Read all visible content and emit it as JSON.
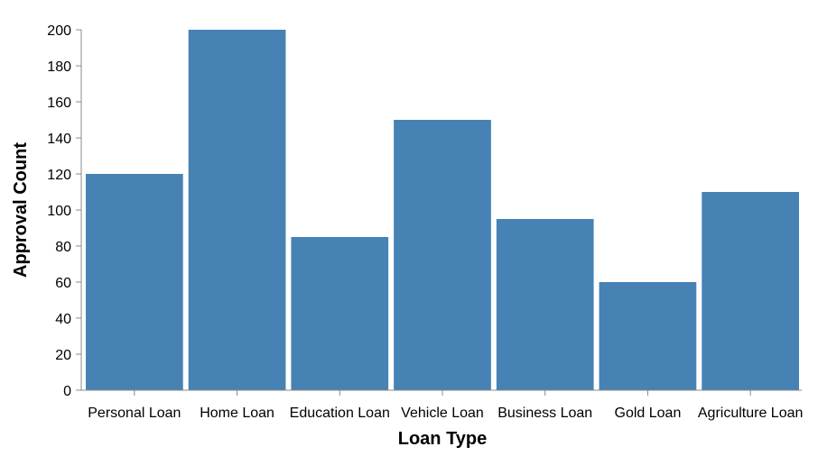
{
  "chart_data": {
    "type": "bar",
    "title": "",
    "xlabel": "Loan Type",
    "ylabel": "Approval Count",
    "categories": [
      "Personal Loan",
      "Home Loan",
      "Education Loan",
      "Vehicle Loan",
      "Business Loan",
      "Gold Loan",
      "Agriculture Loan"
    ],
    "values": [
      120,
      200,
      85,
      150,
      95,
      60,
      110
    ],
    "ylim": [
      0,
      200
    ],
    "yticks": [
      0,
      20,
      40,
      60,
      80,
      100,
      120,
      140,
      160,
      180,
      200
    ],
    "grid": false,
    "bar_color": "#4682b4",
    "axis_color": "#888888"
  }
}
